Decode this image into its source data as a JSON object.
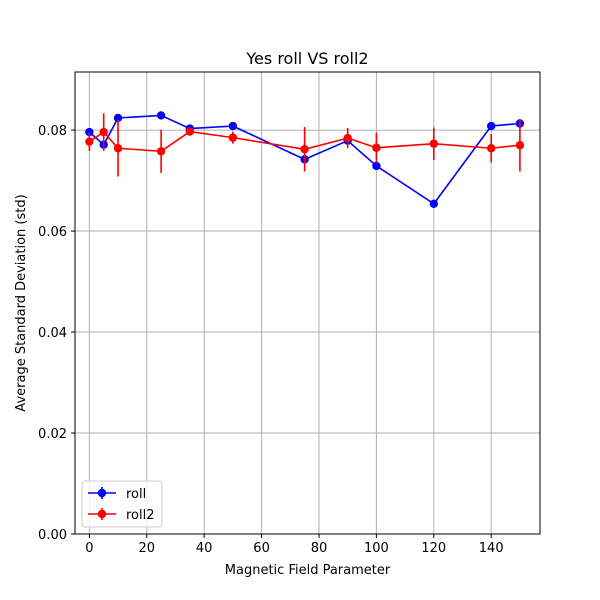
{
  "chart_data": {
    "type": "line",
    "title": "Yes roll VS roll2",
    "xlabel": "Magnetic Field Parameter",
    "ylabel": "Average Standard Deviation (std)",
    "xlim": [
      -5,
      157
    ],
    "ylim": [
      0,
      0.0915
    ],
    "xticks": [
      0,
      20,
      40,
      60,
      80,
      100,
      120,
      140
    ],
    "xtick_labels": [
      "0",
      "20",
      "40",
      "60",
      "80",
      "100",
      "120",
      "140"
    ],
    "yticks": [
      0,
      0.02,
      0.04,
      0.06,
      0.08
    ],
    "ytick_labels": [
      "0.00",
      "0.02",
      "0.04",
      "0.06",
      "0.08"
    ],
    "grid": true,
    "legend_position": "lower-left",
    "series": [
      {
        "name": "roll",
        "color": "#0000ff",
        "x": [
          0,
          5,
          10,
          25,
          35,
          50,
          75,
          90,
          100,
          120,
          140,
          150
        ],
        "y": [
          0.0796,
          0.0771,
          0.0824,
          0.0829,
          0.0803,
          0.0808,
          0.0742,
          0.0779,
          0.0729,
          0.0654,
          0.0808,
          0.0813
        ],
        "err": [
          0.0005,
          0.0004,
          0.0005,
          0.0004,
          0.0004,
          0.0004,
          0.0004,
          0.0004,
          0.0004,
          0.0004,
          0.0004,
          0.0004
        ]
      },
      {
        "name": "roll2",
        "color": "#ff0000",
        "x": [
          0,
          5,
          10,
          25,
          35,
          50,
          75,
          90,
          100,
          120,
          140,
          150
        ],
        "y": [
          0.0777,
          0.0796,
          0.0764,
          0.0758,
          0.0797,
          0.0785,
          0.0762,
          0.0784,
          0.0765,
          0.0773,
          0.0764,
          0.077
        ],
        "err": [
          0.0018,
          0.0037,
          0.0056,
          0.0043,
          0.0004,
          0.0012,
          0.0044,
          0.002,
          0.003,
          0.0032,
          0.0028,
          0.0052
        ]
      }
    ]
  }
}
